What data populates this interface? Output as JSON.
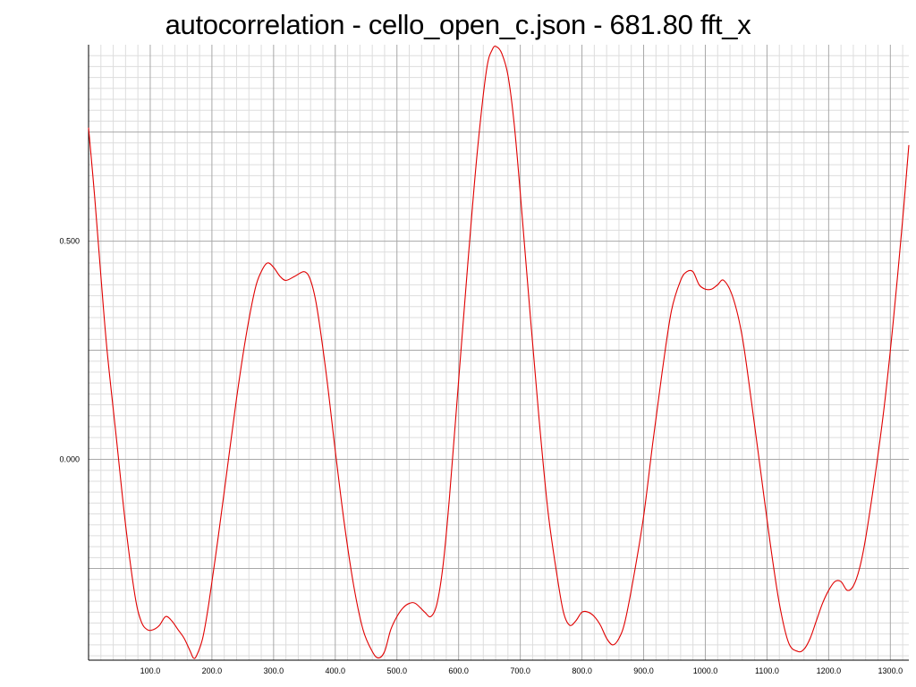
{
  "chart_data": {
    "type": "line",
    "title": "autocorrelation - cello_open_c.json - 681.80 fft_x",
    "xlabel": "",
    "ylabel": "",
    "xlim": [
      0,
      1330
    ],
    "ylim": [
      -0.46,
      0.95
    ],
    "x_ticks": [
      100,
      200,
      300,
      400,
      500,
      600,
      700,
      800,
      900,
      1000,
      1100,
      1200,
      1300
    ],
    "x_tick_labels": [
      "100.0",
      "200.0",
      "300.0",
      "400.0",
      "500.0",
      "600.0",
      "700.0",
      "800.0",
      "900.0",
      "1000.0",
      "1100.0",
      "1200.0",
      "1300.0"
    ],
    "y_ticks": [
      0.0,
      0.5
    ],
    "y_tick_labels": [
      "0.000",
      "0.500"
    ],
    "grid": true,
    "series": [
      {
        "color": "#e00000",
        "x": [
          0,
          10,
          20,
          30,
          45,
          60,
          75,
          85,
          95,
          105,
          115,
          125,
          135,
          145,
          155,
          165,
          170,
          175,
          185,
          195,
          210,
          225,
          240,
          255,
          270,
          280,
          290,
          300,
          310,
          320,
          335,
          350,
          360,
          370,
          385,
          400,
          415,
          430,
          445,
          460,
          470,
          480,
          490,
          500,
          510,
          520,
          530,
          545,
          555,
          565,
          575,
          585,
          600,
          615,
          630,
          645,
          655,
          662,
          670,
          680,
          690,
          700,
          715,
          730,
          745,
          760,
          770,
          780,
          790,
          800,
          810,
          820,
          830,
          840,
          850,
          860,
          870,
          885,
          900,
          915,
          930,
          945,
          960,
          970,
          980,
          990,
          1000,
          1010,
          1020,
          1030,
          1045,
          1060,
          1075,
          1090,
          1105,
          1120,
          1135,
          1150,
          1160,
          1170,
          1180,
          1190,
          1200,
          1210,
          1220,
          1230,
          1240,
          1250,
          1260,
          1275,
          1290,
          1305,
          1320,
          1330
        ],
        "y": [
          0.76,
          0.6,
          0.42,
          0.25,
          0.05,
          -0.15,
          -0.31,
          -0.37,
          -0.39,
          -0.39,
          -0.38,
          -0.36,
          -0.37,
          -0.39,
          -0.41,
          -0.44,
          -0.455,
          -0.45,
          -0.41,
          -0.33,
          -0.18,
          -0.02,
          0.14,
          0.28,
          0.39,
          0.43,
          0.45,
          0.44,
          0.42,
          0.41,
          0.42,
          0.43,
          0.41,
          0.35,
          0.2,
          0.02,
          -0.15,
          -0.29,
          -0.39,
          -0.44,
          -0.455,
          -0.44,
          -0.39,
          -0.36,
          -0.34,
          -0.33,
          -0.33,
          -0.35,
          -0.36,
          -0.33,
          -0.24,
          -0.09,
          0.18,
          0.45,
          0.7,
          0.89,
          0.94,
          0.945,
          0.93,
          0.88,
          0.77,
          0.61,
          0.35,
          0.1,
          -0.12,
          -0.27,
          -0.35,
          -0.38,
          -0.37,
          -0.35,
          -0.35,
          -0.36,
          -0.38,
          -0.41,
          -0.425,
          -0.41,
          -0.37,
          -0.26,
          -0.13,
          0.04,
          0.2,
          0.34,
          0.41,
          0.43,
          0.43,
          0.4,
          0.39,
          0.39,
          0.4,
          0.41,
          0.37,
          0.28,
          0.13,
          -0.03,
          -0.19,
          -0.33,
          -0.42,
          -0.44,
          -0.435,
          -0.41,
          -0.37,
          -0.33,
          -0.3,
          -0.28,
          -0.28,
          -0.3,
          -0.29,
          -0.25,
          -0.18,
          -0.04,
          0.12,
          0.32,
          0.55,
          0.72
        ]
      }
    ]
  }
}
